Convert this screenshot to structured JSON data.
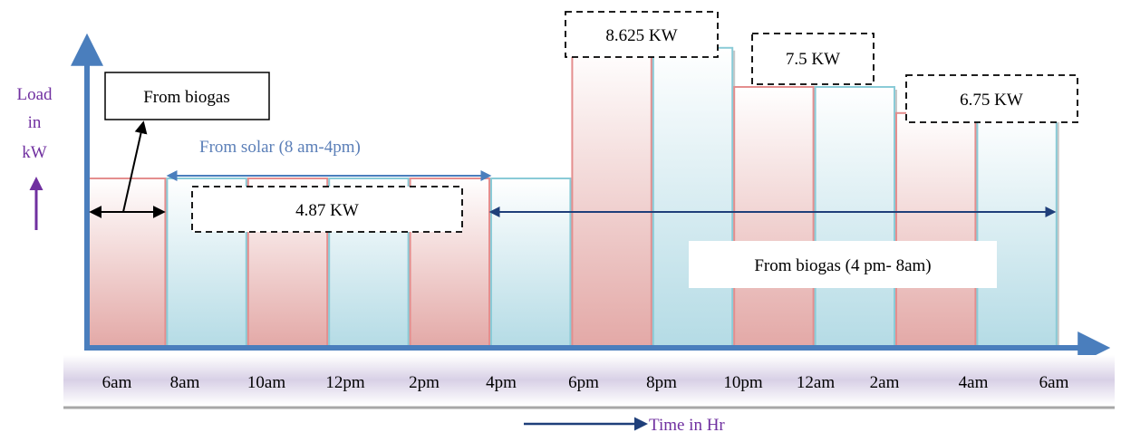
{
  "chart_data": {
    "type": "bar",
    "title": "",
    "ylabel": [
      "Load",
      "in",
      "kW"
    ],
    "xlabel": "Time in Hr",
    "tick_labels": [
      "6am",
      "8am",
      "10am",
      "12pm",
      "2pm",
      "4pm",
      "6pm",
      "8pm",
      "10pm",
      "12am",
      "2am",
      "4am",
      "6am"
    ],
    "values": [
      4.87,
      4.87,
      4.87,
      4.87,
      4.87,
      4.87,
      8.625,
      8.625,
      7.5,
      7.5,
      6.75,
      6.75
    ],
    "bar_styles": [
      "red",
      "blue",
      "red",
      "blue",
      "red",
      "blue",
      "red",
      "blue",
      "red",
      "blue",
      "red",
      "blue"
    ],
    "ylim": [
      0,
      10
    ],
    "callouts": [
      {
        "label": "4.87 KW",
        "style": "dashed"
      },
      {
        "label": "8.625 KW",
        "style": "dashed"
      },
      {
        "label": "7.5 KW",
        "style": "dashed"
      },
      {
        "label": "6.75 KW",
        "style": "dashed"
      }
    ],
    "annotations": {
      "biogas_top": "From biogas",
      "solar": "From solar (8 am-4pm)",
      "biogas_night": "From biogas (4 pm- 8am)"
    },
    "colors": {
      "axis": "#4a7ebd",
      "red_top": "#ffffff",
      "red_bottom": "#e3a8a6",
      "red_border": "#e48e8e",
      "blue_top": "#ffffff",
      "blue_bottom": "#b4dbe5",
      "blue_border": "#8acbd7",
      "purple": "#7030a0",
      "solar_text": "#5b7fb8",
      "dark_arrow": "#1f3f7a",
      "band_mid": "#d8d0e6",
      "band_edge": "#ffffff"
    }
  }
}
